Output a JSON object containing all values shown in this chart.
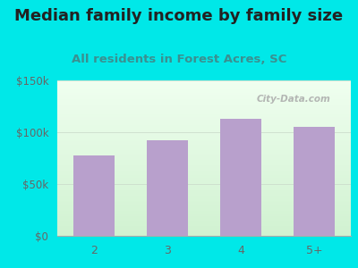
{
  "categories": [
    "2",
    "3",
    "4",
    "5+"
  ],
  "values": [
    78000,
    92000,
    113000,
    105000
  ],
  "bar_color": "#b8a0cc",
  "title": "Median family income by family size",
  "subtitle": "All residents in Forest Acres, SC",
  "title_color": "#222222",
  "subtitle_color": "#3a9090",
  "outer_bg": "#00e8e8",
  "ylim": [
    0,
    150000
  ],
  "yticks": [
    0,
    50000,
    100000,
    150000
  ],
  "ytick_labels": [
    "$0",
    "$50k",
    "$100k",
    "$150k"
  ],
  "watermark": "City-Data.com",
  "title_fontsize": 13,
  "subtitle_fontsize": 9.5,
  "tick_color": "#666666",
  "plot_bg_top": "#f0fff0",
  "plot_bg_bottom": "#d8f0d8"
}
